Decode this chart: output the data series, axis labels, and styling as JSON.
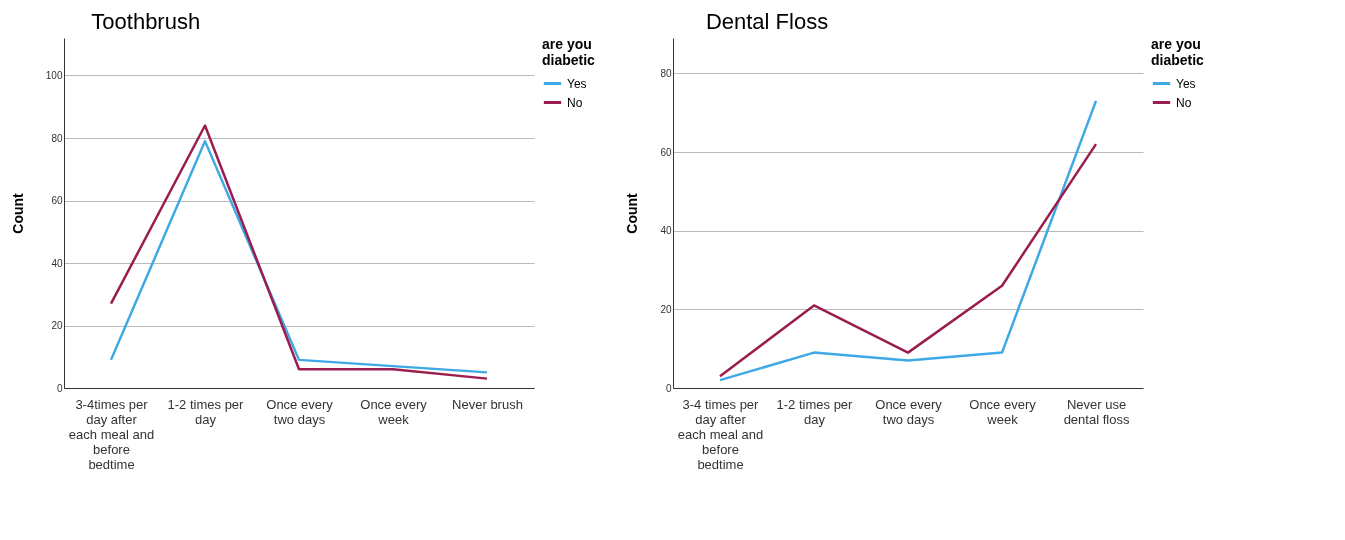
{
  "chart_data": [
    {
      "type": "line",
      "title": "Toothbrush",
      "ylabel": "Count",
      "legend_title": "are you diabetic",
      "categories": [
        "3-4times per day after each meal and before bedtime",
        "1-2 times per day",
        "Once every two days",
        "Once every week",
        "Never brush"
      ],
      "ylim": [
        0,
        112
      ],
      "yticks": [
        0,
        20,
        40,
        60,
        80,
        100
      ],
      "grid": "y",
      "legend": "top right",
      "series": [
        {
          "name": "Yes",
          "color": "#3fa9e5",
          "values": [
            9,
            79,
            9,
            7,
            5
          ]
        },
        {
          "name": "No",
          "color": "#9b1d4f",
          "values": [
            27,
            84,
            6,
            6,
            3
          ]
        }
      ]
    },
    {
      "type": "line",
      "title": "Dental Floss",
      "ylabel": "Count",
      "legend_title": "are you diabetic",
      "categories": [
        "3-4 times per day after each meal and before bedtime",
        "1-2 times per day",
        "Once every two days",
        "Once every week",
        "Never use dental floss"
      ],
      "ylim": [
        0,
        89
      ],
      "yticks": [
        0,
        20,
        40,
        60,
        80
      ],
      "grid": "y",
      "legend": "top right",
      "series": [
        {
          "name": "Yes",
          "color": "#3fa9e5",
          "values": [
            2,
            9,
            7,
            9,
            73
          ]
        },
        {
          "name": "No",
          "color": "#9b1d4f",
          "values": [
            3,
            21,
            9,
            26,
            62
          ]
        }
      ]
    }
  ]
}
